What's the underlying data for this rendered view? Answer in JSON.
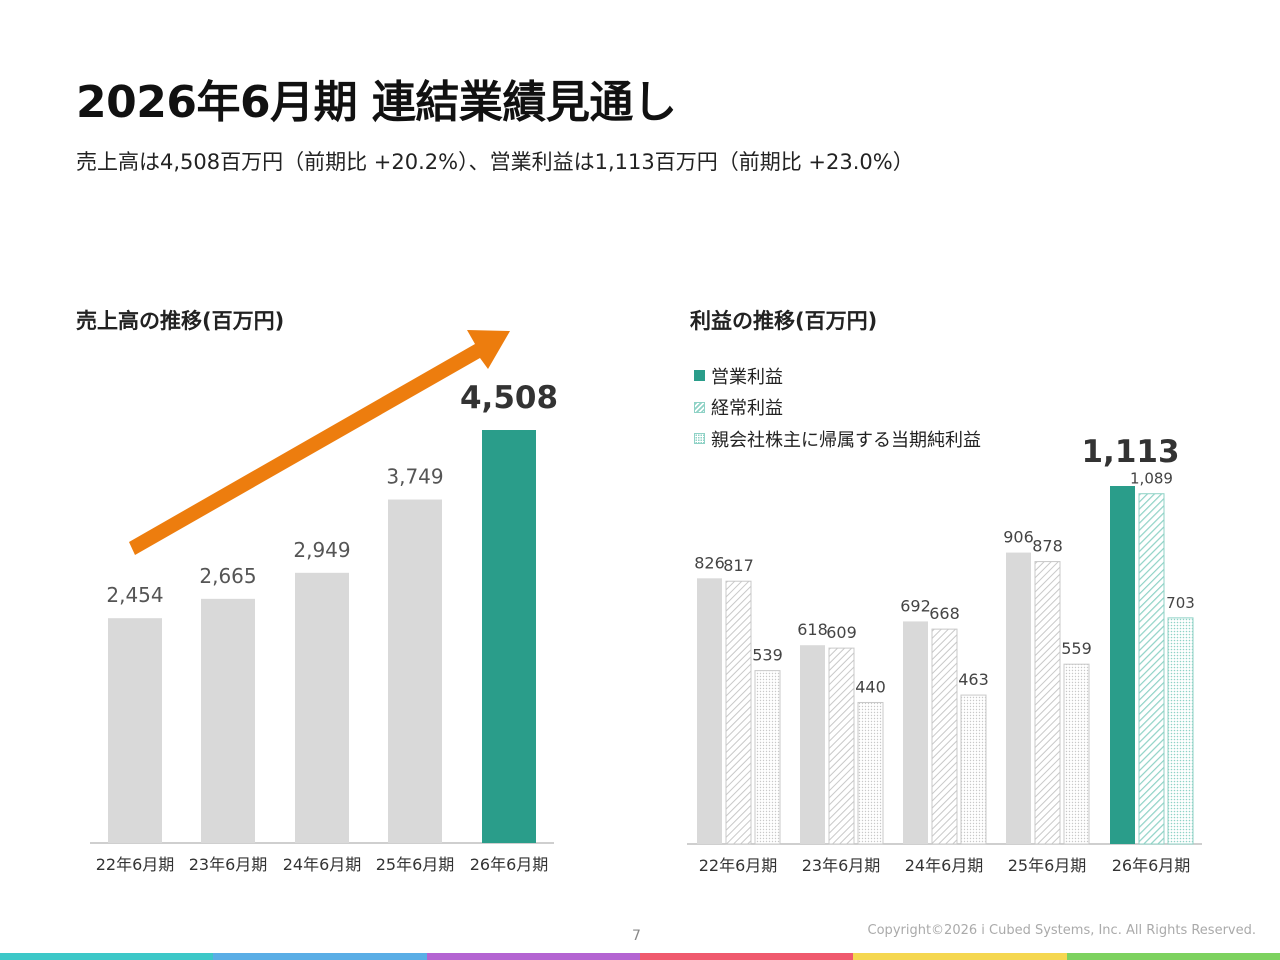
{
  "header": {
    "title": "2026年6月期 連結業績見通し",
    "subtitle": "売上高は4,508百万円（前期比 +20.2%）、営業利益は1,113百万円（前期比 +23.0%）"
  },
  "chart_data": [
    {
      "type": "bar",
      "title": "売上高の推移(百万円)",
      "categories": [
        "22年6月期",
        "23年6月期",
        "24年6月期",
        "25年6月期",
        "26年6月期"
      ],
      "values": [
        2454,
        2665,
        2949,
        3749,
        4508
      ],
      "value_labels": [
        "2,454",
        "2,665",
        "2,949",
        "3,749",
        "4,508"
      ],
      "highlight_index": 4,
      "trend_arrow": true,
      "ylim": [
        0,
        4800
      ],
      "colors": {
        "default": "#d9d9d9",
        "highlight": "#2a9d8a",
        "arrow": "#ed7d0e"
      }
    },
    {
      "type": "bar",
      "title": "利益の推移(百万円)",
      "categories": [
        "22年6月期",
        "23年6月期",
        "24年6月期",
        "25年6月期",
        "26年6月期"
      ],
      "series": [
        {
          "name": "営業利益",
          "pattern": "solid",
          "values": [
            826,
            618,
            692,
            906,
            1113
          ],
          "labels": [
            "826",
            "618",
            "692",
            "906",
            "1,113"
          ]
        },
        {
          "name": "経常利益",
          "pattern": "hatch",
          "values": [
            817,
            609,
            668,
            878,
            1089
          ],
          "labels": [
            "817",
            "609",
            "668",
            "878",
            "1,089"
          ]
        },
        {
          "name": "親会社株主に帰属する当期純利益",
          "pattern": "dot",
          "values": [
            539,
            440,
            463,
            559,
            703
          ],
          "labels": [
            "539",
            "440",
            "463",
            "559",
            "703"
          ]
        }
      ],
      "highlight_index": 4,
      "ylim": [
        0,
        1200
      ],
      "colors": {
        "default": "#d9d9d9",
        "highlight": "#2a9d8a",
        "highlight_light": "#8fd2c6"
      }
    }
  ],
  "footer": {
    "page_number": "7",
    "copyright": "Copyright©2026 i Cubed Systems, Inc. All Rights Reserved.",
    "strip_colors": [
      "#3cc8c8",
      "#5aaee6",
      "#b464d2",
      "#f05a6e",
      "#f5d750",
      "#7dd25f"
    ]
  }
}
